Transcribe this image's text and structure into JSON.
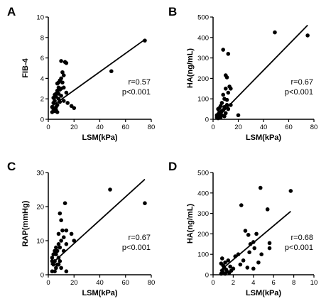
{
  "chart_data": [
    {
      "type": "scatter",
      "panel": "A",
      "xlabel": "LSM(kPa)",
      "ylabel": "FIB-4",
      "xlim": [
        0,
        80
      ],
      "ylim": [
        0,
        10
      ],
      "xticks": [
        0,
        20,
        40,
        60,
        80
      ],
      "yticks": [
        0,
        2,
        4,
        6,
        8,
        10
      ],
      "annotation_r": "r=0.57",
      "annotation_p": "p<0.001",
      "fit_line": [
        [
          3,
          1.3
        ],
        [
          75,
          7.8
        ]
      ],
      "points": [
        [
          75,
          7.7
        ],
        [
          49,
          4.7
        ],
        [
          14,
          5.5
        ],
        [
          10,
          5.7
        ],
        [
          13,
          5.6
        ],
        [
          11,
          4.6
        ],
        [
          12,
          4.3
        ],
        [
          10,
          4.0
        ],
        [
          9,
          3.8
        ],
        [
          8,
          3.6
        ],
        [
          11,
          3.6
        ],
        [
          7,
          3.5
        ],
        [
          8,
          3.1
        ],
        [
          12,
          3.1
        ],
        [
          10,
          3.0
        ],
        [
          9,
          2.9
        ],
        [
          7,
          2.8
        ],
        [
          14,
          2.6
        ],
        [
          6,
          2.5
        ],
        [
          8,
          2.5
        ],
        [
          5,
          2.4
        ],
        [
          10,
          2.3
        ],
        [
          6,
          2.2
        ],
        [
          4,
          2.1
        ],
        [
          8,
          2.0
        ],
        [
          12,
          1.8
        ],
        [
          5,
          1.8
        ],
        [
          9,
          1.7
        ],
        [
          15,
          1.6
        ],
        [
          18,
          1.3
        ],
        [
          20,
          1.1
        ],
        [
          7,
          1.4
        ],
        [
          3,
          1.2
        ],
        [
          4,
          1.0
        ],
        [
          6,
          0.9
        ],
        [
          5,
          0.8
        ],
        [
          3,
          0.7
        ],
        [
          7,
          0.7
        ],
        [
          4,
          1.6
        ],
        [
          6,
          1.2
        ]
      ]
    },
    {
      "type": "scatter",
      "panel": "B",
      "xlabel": "LSM(kPa)",
      "ylabel": "HA(ng/mL)",
      "xlim": [
        0,
        80
      ],
      "ylim": [
        0,
        500
      ],
      "xticks": [
        0,
        20,
        40,
        60,
        80
      ],
      "yticks": [
        0,
        100,
        200,
        300,
        400,
        500
      ],
      "annotation_r": "r=0.67",
      "annotation_p": "p<0.001",
      "fit_line": [
        [
          2,
          0
        ],
        [
          75,
          460
        ]
      ],
      "points": [
        [
          75,
          410
        ],
        [
          49,
          425
        ],
        [
          8,
          340
        ],
        [
          12,
          320
        ],
        [
          10,
          215
        ],
        [
          11,
          205
        ],
        [
          13,
          160
        ],
        [
          10,
          150
        ],
        [
          12,
          130
        ],
        [
          8,
          120
        ],
        [
          9,
          100
        ],
        [
          11,
          95
        ],
        [
          7,
          80
        ],
        [
          14,
          70
        ],
        [
          6,
          65
        ],
        [
          9,
          60
        ],
        [
          5,
          55
        ],
        [
          12,
          50
        ],
        [
          4,
          50
        ],
        [
          8,
          45
        ],
        [
          7,
          40
        ],
        [
          5,
          35
        ],
        [
          6,
          30
        ],
        [
          10,
          30
        ],
        [
          4,
          25
        ],
        [
          3,
          20
        ],
        [
          20,
          20
        ],
        [
          7,
          20
        ],
        [
          5,
          15
        ],
        [
          9,
          15
        ],
        [
          3,
          10
        ],
        [
          6,
          10
        ],
        [
          4,
          5
        ],
        [
          14,
          150
        ],
        [
          11,
          70
        ]
      ]
    },
    {
      "type": "scatter",
      "panel": "C",
      "xlabel": "LSM(kPa)",
      "ylabel": "RAP(mmHg)",
      "xlim": [
        0,
        80
      ],
      "ylim": [
        0,
        30
      ],
      "xticks": [
        0,
        20,
        40,
        60,
        80
      ],
      "yticks": [
        0,
        10,
        20,
        30
      ],
      "annotation_r": "r=0.67",
      "annotation_p": "p<0.001",
      "fit_line": [
        [
          2,
          3
        ],
        [
          75,
          28
        ]
      ],
      "points": [
        [
          75,
          21
        ],
        [
          48,
          25
        ],
        [
          13,
          21
        ],
        [
          9,
          18
        ],
        [
          10,
          16
        ],
        [
          11,
          13
        ],
        [
          14,
          13
        ],
        [
          8,
          12
        ],
        [
          18,
          12
        ],
        [
          12,
          11
        ],
        [
          20,
          10
        ],
        [
          10,
          10
        ],
        [
          14,
          9
        ],
        [
          8,
          9
        ],
        [
          6,
          8
        ],
        [
          9,
          8
        ],
        [
          5,
          7
        ],
        [
          7,
          7
        ],
        [
          12,
          7
        ],
        [
          4,
          6
        ],
        [
          6,
          6
        ],
        [
          3,
          5
        ],
        [
          8,
          5
        ],
        [
          5,
          4
        ],
        [
          3,
          4
        ],
        [
          7,
          3
        ],
        [
          4,
          3
        ],
        [
          6,
          2
        ],
        [
          10,
          2
        ],
        [
          3,
          1
        ],
        [
          5,
          1
        ],
        [
          14,
          1
        ],
        [
          9,
          4
        ],
        [
          8,
          3
        ]
      ]
    },
    {
      "type": "scatter",
      "panel": "D",
      "xlabel": "LSM(kPa)",
      "ylabel": "HA(ng/mL)",
      "xlim": [
        0,
        10
      ],
      "ylim": [
        0,
        500
      ],
      "xticks": [
        0,
        2,
        4,
        6,
        8,
        10
      ],
      "yticks": [
        0,
        100,
        200,
        300,
        400,
        500
      ],
      "annotation_r": "r=0.68",
      "annotation_p": "p<0.001",
      "fit_line": [
        [
          0.7,
          20
        ],
        [
          7.7,
          310
        ]
      ],
      "points": [
        [
          4.7,
          425
        ],
        [
          7.7,
          410
        ],
        [
          2.8,
          340
        ],
        [
          5.4,
          320
        ],
        [
          3.2,
          215
        ],
        [
          4.3,
          200
        ],
        [
          3.5,
          195
        ],
        [
          4.0,
          160
        ],
        [
          5.6,
          155
        ],
        [
          3.7,
          150
        ],
        [
          4.1,
          130
        ],
        [
          5.6,
          130
        ],
        [
          3.6,
          110
        ],
        [
          2.5,
          100
        ],
        [
          4.8,
          100
        ],
        [
          2.2,
          90
        ],
        [
          0.9,
          80
        ],
        [
          1.5,
          70
        ],
        [
          3.0,
          70
        ],
        [
          4.5,
          60
        ],
        [
          1.2,
          60
        ],
        [
          0.8,
          55
        ],
        [
          2.7,
          50
        ],
        [
          1.0,
          45
        ],
        [
          1.7,
          40
        ],
        [
          1.1,
          35
        ],
        [
          3.4,
          35
        ],
        [
          2.0,
          30
        ],
        [
          4.0,
          30
        ],
        [
          1.3,
          25
        ],
        [
          0.9,
          20
        ],
        [
          1.8,
          20
        ],
        [
          1.4,
          15
        ],
        [
          1.0,
          10
        ],
        [
          1.6,
          10
        ],
        [
          0.8,
          5
        ],
        [
          1.2,
          5
        ]
      ]
    }
  ]
}
